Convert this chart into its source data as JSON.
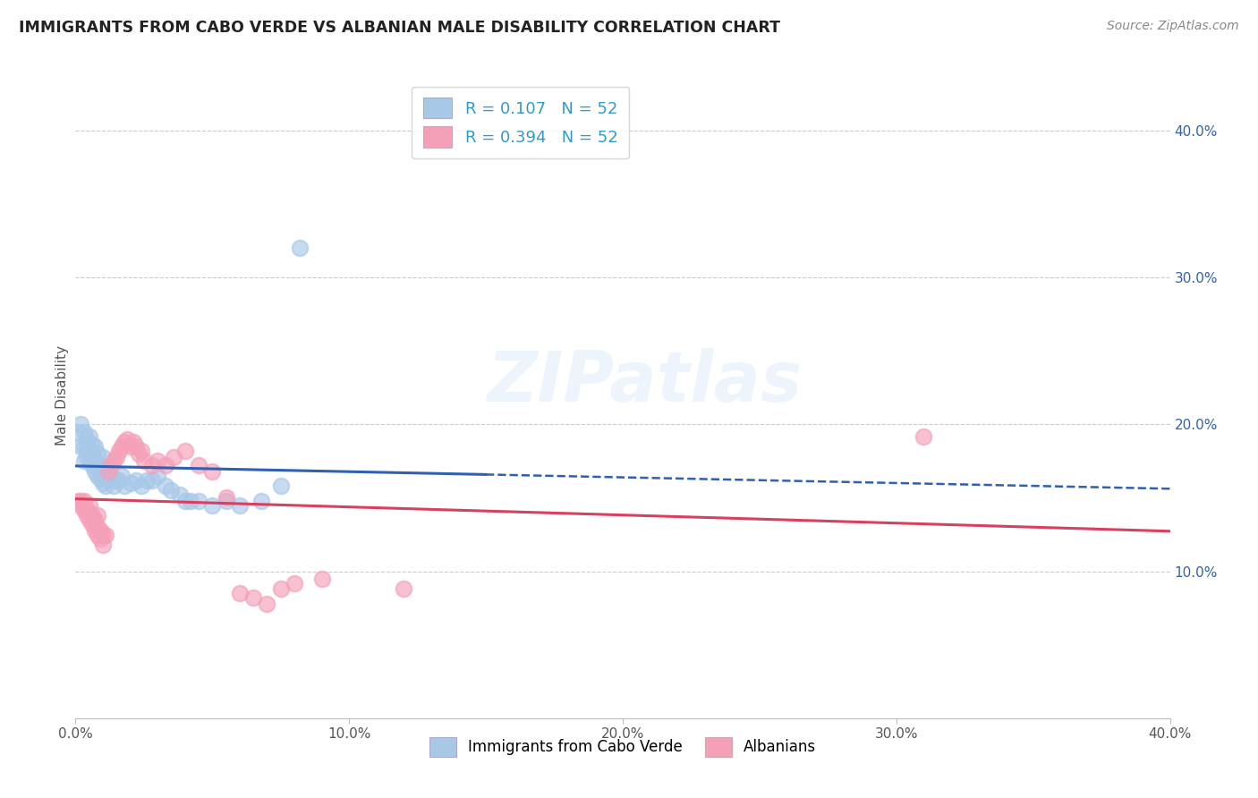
{
  "title": "IMMIGRANTS FROM CABO VERDE VS ALBANIAN MALE DISABILITY CORRELATION CHART",
  "source": "Source: ZipAtlas.com",
  "ylabel": "Male Disability",
  "xlim": [
    0.0,
    0.4
  ],
  "ylim": [
    0.0,
    0.44
  ],
  "xtick_labels": [
    "0.0%",
    "10.0%",
    "20.0%",
    "30.0%",
    "40.0%"
  ],
  "xtick_vals": [
    0.0,
    0.1,
    0.2,
    0.3,
    0.4
  ],
  "ytick_labels": [
    "10.0%",
    "20.0%",
    "30.0%",
    "40.0%"
  ],
  "ytick_vals": [
    0.1,
    0.2,
    0.3,
    0.4
  ],
  "cabo_verde_color": "#a8c8e8",
  "albanian_color": "#f4a0b8",
  "cabo_verde_line_color": "#3060b0",
  "albanian_line_color": "#d84060",
  "legend_cabo_label": "Immigrants from Cabo Verde",
  "legend_alb_label": "Albanians",
  "watermark": "ZIPatlas",
  "cabo_verde_x": [
    0.001,
    0.002,
    0.002,
    0.003,
    0.003,
    0.003,
    0.004,
    0.004,
    0.004,
    0.005,
    0.005,
    0.005,
    0.006,
    0.006,
    0.006,
    0.007,
    0.007,
    0.007,
    0.008,
    0.008,
    0.008,
    0.009,
    0.009,
    0.01,
    0.01,
    0.01,
    0.011,
    0.012,
    0.013,
    0.014,
    0.015,
    0.016,
    0.017,
    0.018,
    0.02,
    0.022,
    0.024,
    0.026,
    0.028,
    0.03,
    0.033,
    0.035,
    0.038,
    0.04,
    0.042,
    0.045,
    0.05,
    0.055,
    0.06,
    0.068,
    0.075,
    0.082
  ],
  "cabo_verde_y": [
    0.195,
    0.2,
    0.185,
    0.175,
    0.185,
    0.195,
    0.178,
    0.182,
    0.19,
    0.175,
    0.182,
    0.192,
    0.172,
    0.178,
    0.186,
    0.168,
    0.175,
    0.185,
    0.165,
    0.172,
    0.18,
    0.163,
    0.172,
    0.16,
    0.168,
    0.178,
    0.158,
    0.162,
    0.165,
    0.158,
    0.162,
    0.162,
    0.165,
    0.158,
    0.16,
    0.162,
    0.158,
    0.162,
    0.162,
    0.165,
    0.158,
    0.155,
    0.152,
    0.148,
    0.148,
    0.148,
    0.145,
    0.148,
    0.145,
    0.148,
    0.158,
    0.32
  ],
  "albanian_x": [
    0.001,
    0.002,
    0.002,
    0.003,
    0.003,
    0.004,
    0.004,
    0.005,
    0.005,
    0.005,
    0.006,
    0.006,
    0.007,
    0.007,
    0.008,
    0.008,
    0.008,
    0.009,
    0.009,
    0.01,
    0.01,
    0.011,
    0.012,
    0.013,
    0.014,
    0.015,
    0.016,
    0.017,
    0.018,
    0.019,
    0.02,
    0.021,
    0.022,
    0.023,
    0.024,
    0.025,
    0.028,
    0.03,
    0.033,
    0.036,
    0.04,
    0.045,
    0.05,
    0.055,
    0.06,
    0.065,
    0.07,
    0.075,
    0.08,
    0.09,
    0.12,
    0.31
  ],
  "albanian_y": [
    0.148,
    0.148,
    0.145,
    0.142,
    0.148,
    0.138,
    0.142,
    0.135,
    0.14,
    0.145,
    0.132,
    0.138,
    0.128,
    0.135,
    0.125,
    0.13,
    0.138,
    0.122,
    0.128,
    0.118,
    0.125,
    0.125,
    0.168,
    0.172,
    0.175,
    0.178,
    0.182,
    0.185,
    0.188,
    0.19,
    0.185,
    0.188,
    0.185,
    0.18,
    0.182,
    0.175,
    0.172,
    0.175,
    0.172,
    0.178,
    0.182,
    0.172,
    0.168,
    0.15,
    0.085,
    0.082,
    0.078,
    0.088,
    0.092,
    0.095,
    0.088,
    0.192
  ],
  "background_color": "#ffffff",
  "grid_color": "#cccccc"
}
